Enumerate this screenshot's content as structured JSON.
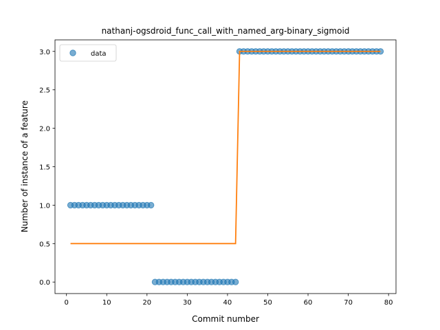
{
  "chart_data": {
    "type": "scatter",
    "title": "nathanj-ogsdroid_func_call_with_named_arg-binary_sigmoid",
    "xlabel": "Commit number",
    "ylabel": "Number of instance of a feature",
    "xlim": [
      -2.85,
      81.85
    ],
    "ylim": [
      -0.15,
      3.15
    ],
    "xticks": [
      0,
      10,
      20,
      30,
      40,
      50,
      60,
      70,
      80
    ],
    "yticks": [
      0.0,
      0.5,
      1.0,
      1.5,
      2.0,
      2.5,
      3.0
    ],
    "xtick_labels": [
      "0",
      "10",
      "20",
      "30",
      "40",
      "50",
      "60",
      "70",
      "80"
    ],
    "ytick_labels": [
      "0.0",
      "0.5",
      "1.0",
      "1.5",
      "2.0",
      "2.5",
      "3.0"
    ],
    "grid": false,
    "legend_position": "top-left",
    "series": [
      {
        "name": "data",
        "kind": "scatter",
        "color": "#1f77b4",
        "segments": [
          {
            "x_start": 1,
            "x_end": 21,
            "y": 1
          },
          {
            "x_start": 22,
            "x_end": 42,
            "y": 0
          },
          {
            "x_start": 43,
            "x_end": 78,
            "y": 3
          }
        ]
      },
      {
        "kind": "line",
        "color": "#ff7f0e",
        "x": [
          1,
          42,
          43,
          78
        ],
        "y": [
          0.5,
          0.5,
          3.0,
          3.0
        ]
      }
    ]
  }
}
